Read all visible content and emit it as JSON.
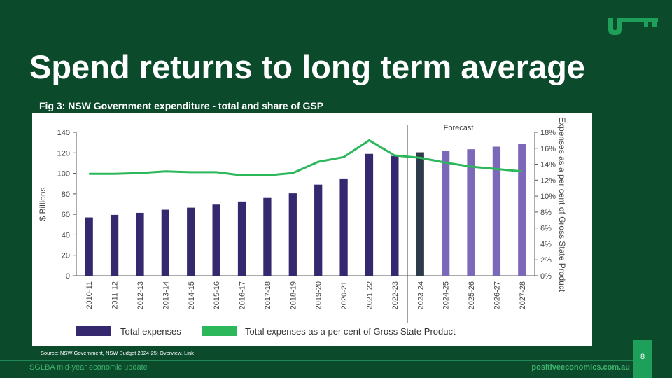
{
  "slide": {
    "title": "Spend returns to long term average",
    "figure_caption": "Fig 3: NSW Government expenditure - total and share of GSP",
    "source_text": "Source: NSW Government, NSW Budget 2024-25: Overview.",
    "source_link": "Link",
    "page_number": "8",
    "footer_left": "SGLBA mid-year economic update",
    "footer_right": "positiveeconomics.com.au",
    "logo_icon": "key-icon",
    "colors": {
      "background": "#0c4a2c",
      "accent": "#1fa05a",
      "footer_text": "#3fb56e"
    }
  },
  "chart_data": {
    "type": "bar",
    "categories": [
      "2010-11",
      "2011-12",
      "2012-13",
      "2013-14",
      "2014-15",
      "2015-16",
      "2016-17",
      "2017-18",
      "2018-19",
      "2019-20",
      "2020-21",
      "2021-22",
      "2022-23",
      "2023-24",
      "2024-25",
      "2025-26",
      "2026-27",
      "2027-28"
    ],
    "ylabel": "$ Billions",
    "y2label": "Expenses as a per cent of Gross State Product",
    "ylim": [
      0,
      140
    ],
    "y2lim": [
      0,
      18
    ],
    "yticks": [
      "0",
      "20",
      "40",
      "60",
      "80",
      "100",
      "120",
      "140"
    ],
    "y2ticks": [
      "0%",
      "2%",
      "4%",
      "6%",
      "8%",
      "10%",
      "12%",
      "14%",
      "16%",
      "18%"
    ],
    "annotation": "Forecast",
    "grid": false,
    "legend_position": "bottom",
    "series": [
      {
        "name": "Total expenses",
        "type": "bar",
        "axis": "left",
        "values": [
          57,
          59.5,
          61.5,
          64.5,
          66.5,
          69.5,
          72.5,
          76,
          80.5,
          89,
          95,
          119,
          117,
          120.5,
          122,
          123.5,
          126,
          129
        ],
        "colors": [
          "#35286e",
          "#35286e",
          "#35286e",
          "#35286e",
          "#35286e",
          "#35286e",
          "#35286e",
          "#35286e",
          "#35286e",
          "#35286e",
          "#35286e",
          "#35286e",
          "#35286e",
          "#2d3a4a",
          "#7b68b8",
          "#7b68b8",
          "#7b68b8",
          "#7b68b8"
        ]
      },
      {
        "name": "Total expenses as a per cent of Gross State Product",
        "type": "line",
        "axis": "right",
        "color": "#2db75b",
        "values": [
          12.8,
          12.8,
          12.9,
          13.1,
          13.0,
          13.0,
          12.6,
          12.6,
          12.9,
          14.3,
          14.9,
          17.0,
          15.1,
          14.8,
          14.2,
          13.7,
          13.4,
          13.1
        ]
      }
    ]
  }
}
